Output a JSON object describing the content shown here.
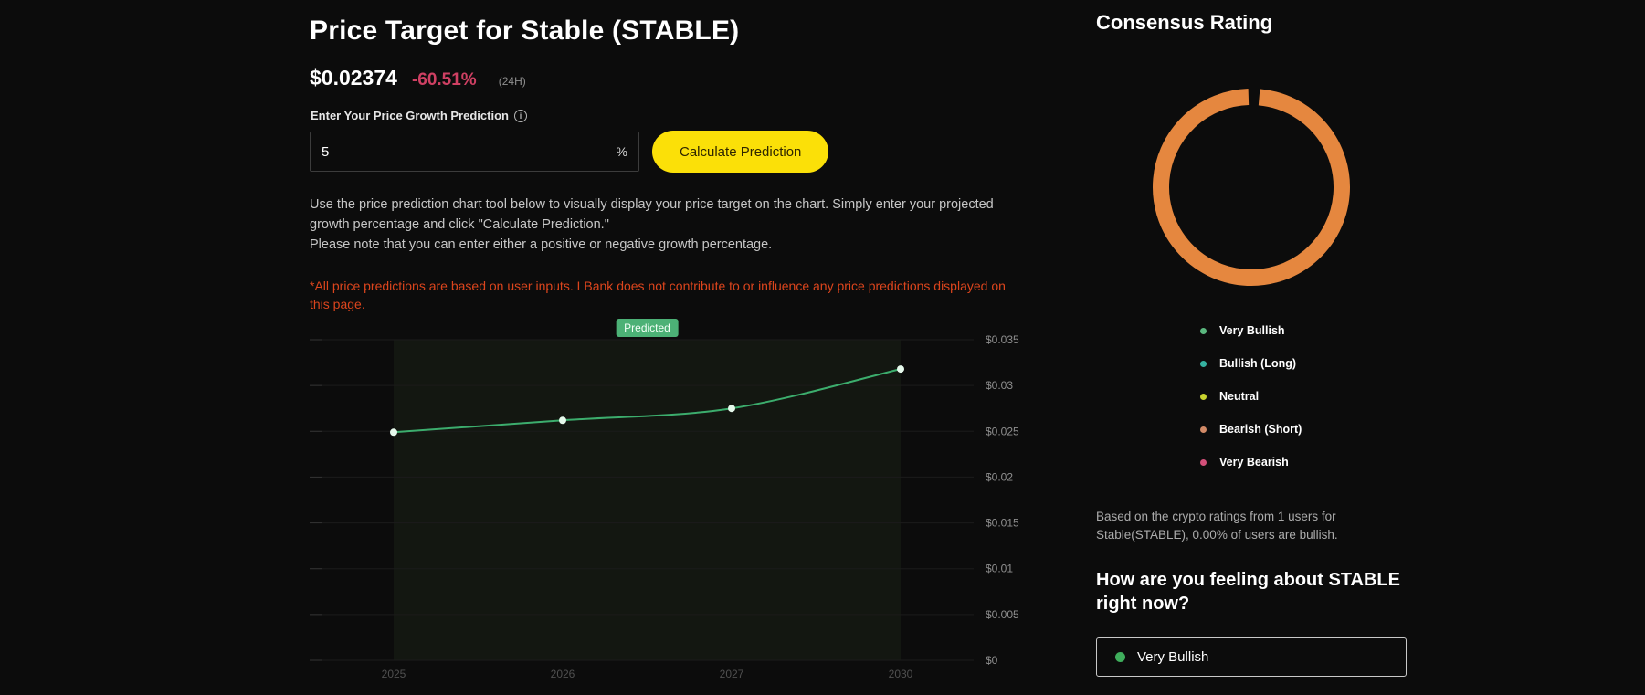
{
  "main": {
    "title": "Price Target for Stable (STABLE)",
    "price": "$0.02374",
    "change": "-60.51%",
    "change_period": "(24H)",
    "prediction_input": {
      "label": "Enter Your Price Growth Prediction",
      "value": "5",
      "unit": "%"
    },
    "calculate_button": "Calculate Prediction",
    "description_line1": "Use the price prediction chart tool below to visually display your price target on the chart. Simply enter your projected growth percentage and click \"Calculate Prediction.\"",
    "description_line2": "Please note that you can enter either a positive or negative growth percentage.",
    "disclaimer": "*All price predictions are based on user inputs. LBank does not contribute to or influence any price predictions displayed on this page."
  },
  "chart_data": {
    "type": "line",
    "badge": "Predicted",
    "categories": [
      "2025",
      "2026",
      "2027",
      "2030"
    ],
    "values": [
      0.0249,
      0.0262,
      0.0275,
      0.0318
    ],
    "series_name": "Predicted price",
    "ylim": [
      0,
      0.035
    ],
    "ytick_step": 0.005,
    "ytick_labels": [
      "$0",
      "$0.005",
      "$0.01",
      "$0.015",
      "$0.02",
      "$0.025",
      "$0.03",
      "$0.035"
    ],
    "grid": true,
    "legend_position": "none",
    "line_color": "#3cad6d",
    "dot_color": "#e6f9ec",
    "band_color": "#131711",
    "grid_color": "#1b1b1b",
    "tick_color": "#333333",
    "ylabel_color": "#8e8e8e",
    "xlabel_color": "#505050"
  },
  "sidebar": {
    "title": "Consensus Rating",
    "donut": {
      "color": "#e5873f"
    },
    "legend": [
      {
        "label": "Very Bullish",
        "color": "#5bb87f"
      },
      {
        "label": "Bullish (Long)",
        "color": "#35b1a0"
      },
      {
        "label": "Neutral",
        "color": "#c9d32f"
      },
      {
        "label": "Bearish (Short)",
        "color": "#d28a67"
      },
      {
        "label": "Very Bearish",
        "color": "#d4507a"
      }
    ],
    "summary": "Based on the crypto ratings from 1 users for Stable(STABLE), 0.00% of users are bullish.",
    "question": "How are you feeling about STABLE right now?",
    "select": {
      "value": "Very Bullish",
      "dot_color": "#3fae5c"
    }
  }
}
